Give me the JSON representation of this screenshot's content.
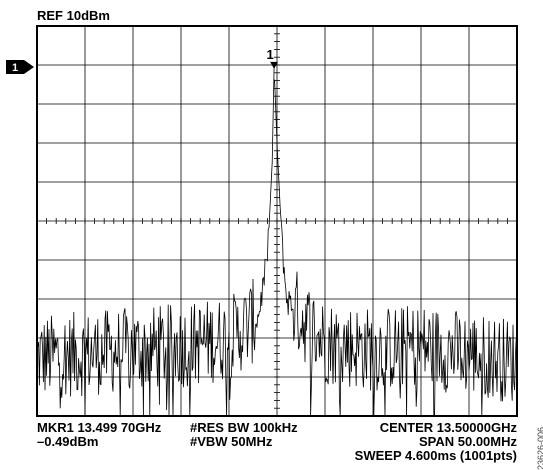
{
  "header": {
    "ref_level": "REF 10dBm",
    "ref_marker_label": "1"
  },
  "marker": {
    "label": "1",
    "readout_freq": "MKR1  13.499 70GHz",
    "readout_level": "–0.49dBm"
  },
  "settings": {
    "res_bw": "#RES BW 100kHz",
    "vbw": "#VBW 50MHz",
    "center": "CENTER 13.50000GHz",
    "span": "SPAN 50.00MHz",
    "sweep": "SWEEP 4.600ms (1001pts)"
  },
  "figure_id": "23626-006",
  "chart_data": {
    "type": "line",
    "title": "",
    "xlabel": "",
    "ylabel": "",
    "xlim": [
      13.475,
      13.525
    ],
    "ylim": [
      -90,
      10
    ],
    "grid": true,
    "grid_divisions": {
      "x": 10,
      "y": 10
    },
    "x_unit": "GHz",
    "y_unit": "dBm",
    "series": [
      {
        "name": "",
        "color": "#000000",
        "peak": {
          "x": 13.4997,
          "y": -0.49
        },
        "noise_floor": {
          "mean": -72,
          "range": [
            -82,
            -62
          ]
        },
        "points": [
          [
            13.475,
            -75
          ],
          [
            13.48,
            -74
          ],
          [
            13.485,
            -73
          ],
          [
            13.49,
            -72
          ],
          [
            13.495,
            -70
          ],
          [
            13.498,
            -65
          ],
          [
            13.499,
            -50
          ],
          [
            13.4995,
            -25
          ],
          [
            13.4997,
            -0.49
          ],
          [
            13.5,
            -20
          ],
          [
            13.5005,
            -45
          ],
          [
            13.501,
            -60
          ],
          [
            13.503,
            -66
          ],
          [
            13.505,
            -71
          ],
          [
            13.51,
            -73
          ],
          [
            13.515,
            -72
          ],
          [
            13.52,
            -74
          ],
          [
            13.525,
            -76
          ]
        ]
      }
    ]
  },
  "colors": {
    "trace": "#000000",
    "grid": "#000000",
    "background": "#ffffff"
  }
}
